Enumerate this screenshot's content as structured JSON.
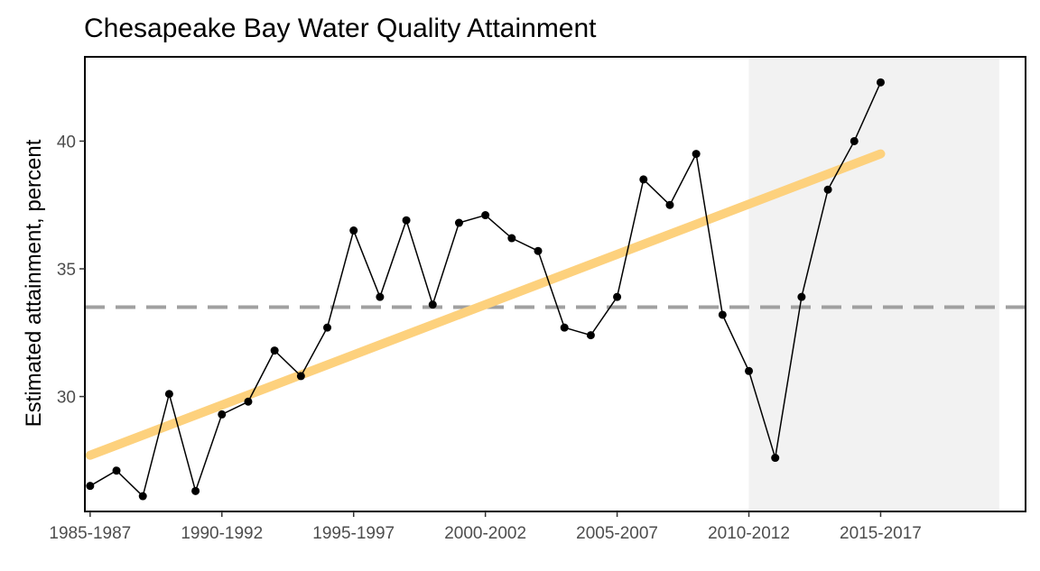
{
  "chart_data": {
    "type": "line",
    "title": "Chesapeake Bay Water Quality Attainment",
    "ylabel": "Estimated attainment, percent",
    "xlabel": "",
    "x_tick_labels": [
      "1985-1987",
      "1990-1992",
      "1995-1997",
      "2000-2002",
      "2005-2007",
      "2010-2012",
      "2015-2017"
    ],
    "x_tick_start_years": [
      1985,
      1990,
      1995,
      2000,
      2005,
      2010,
      2015
    ],
    "y_ticks": [
      30,
      35,
      40
    ],
    "xlim": [
      1984.8,
      2020.5
    ],
    "ylim": [
      25.5,
      43.3
    ],
    "grid": false,
    "series": [
      {
        "type": "line-with-points",
        "x": [
          1985,
          1986,
          1987,
          1988,
          1989,
          1990,
          1991,
          1992,
          1993,
          1994,
          1995,
          1996,
          1997,
          1998,
          1999,
          2000,
          2001,
          2002,
          2003,
          2004,
          2005,
          2006,
          2007,
          2008,
          2009,
          2010,
          2011,
          2012,
          2013,
          2014,
          2015
        ],
        "values": [
          26.5,
          27.1,
          26.1,
          30.1,
          26.3,
          29.3,
          29.8,
          31.8,
          30.8,
          32.7,
          36.5,
          33.9,
          36.9,
          33.6,
          36.8,
          37.1,
          36.2,
          35.7,
          32.7,
          32.4,
          33.9,
          38.5,
          37.5,
          39.5,
          33.2,
          31.0,
          27.6,
          33.9,
          38.1,
          40.0,
          42.3
        ],
        "color": "#000000"
      },
      {
        "type": "trend",
        "x": [
          1985,
          2015
        ],
        "values": [
          27.7,
          39.5
        ],
        "color": "#fdd17d"
      }
    ],
    "reference_line": {
      "y": 33.5,
      "style": "dashed",
      "color": "#a0a0a0"
    },
    "shaded_region": {
      "x_start": 2010,
      "x_end": 2019.5,
      "color": "#f2f2f2"
    }
  }
}
